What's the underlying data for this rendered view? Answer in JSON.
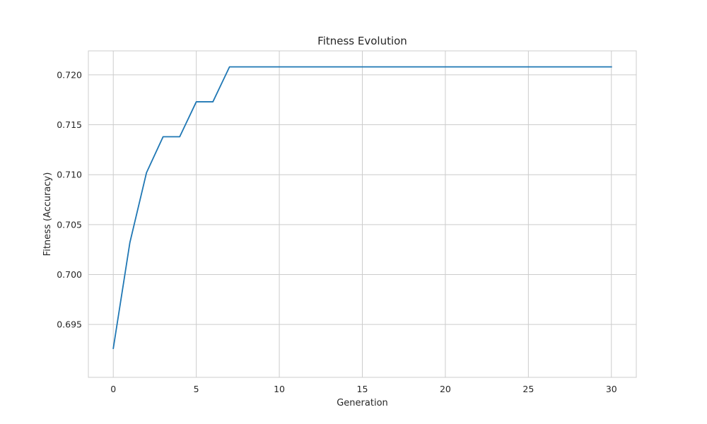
{
  "chart_data": {
    "type": "line",
    "title": "Fitness Evolution",
    "xlabel": "Generation",
    "ylabel": "Fitness (Accuracy)",
    "xlim": [
      -1.5,
      31.5
    ],
    "ylim": [
      0.6897,
      0.7224
    ],
    "xticks": [
      0,
      5,
      10,
      15,
      20,
      25,
      30
    ],
    "yticks": [
      0.695,
      0.7,
      0.705,
      0.71,
      0.715,
      0.72
    ],
    "xtick_labels": [
      "0",
      "5",
      "10",
      "15",
      "20",
      "25",
      "30"
    ],
    "ytick_labels": [
      "0.695",
      "0.700",
      "0.705",
      "0.710",
      "0.715",
      "0.720"
    ],
    "grid": true,
    "legend": "none",
    "series": [
      {
        "color": "#1f77b4",
        "x": [
          0,
          1,
          2,
          3,
          4,
          5,
          6,
          7,
          8,
          9,
          10,
          11,
          12,
          13,
          14,
          15,
          16,
          17,
          18,
          19,
          20,
          21,
          22,
          23,
          24,
          25,
          26,
          27,
          28,
          29,
          30
        ],
        "y": [
          0.6926,
          0.7032,
          0.7102,
          0.7138,
          0.7138,
          0.7173,
          0.7173,
          0.7208,
          0.7208,
          0.7208,
          0.7208,
          0.7208,
          0.7208,
          0.7208,
          0.7208,
          0.7208,
          0.7208,
          0.7208,
          0.7208,
          0.7208,
          0.7208,
          0.7208,
          0.7208,
          0.7208,
          0.7208,
          0.7208,
          0.7208,
          0.7208,
          0.7208,
          0.7208,
          0.7208
        ]
      }
    ]
  }
}
